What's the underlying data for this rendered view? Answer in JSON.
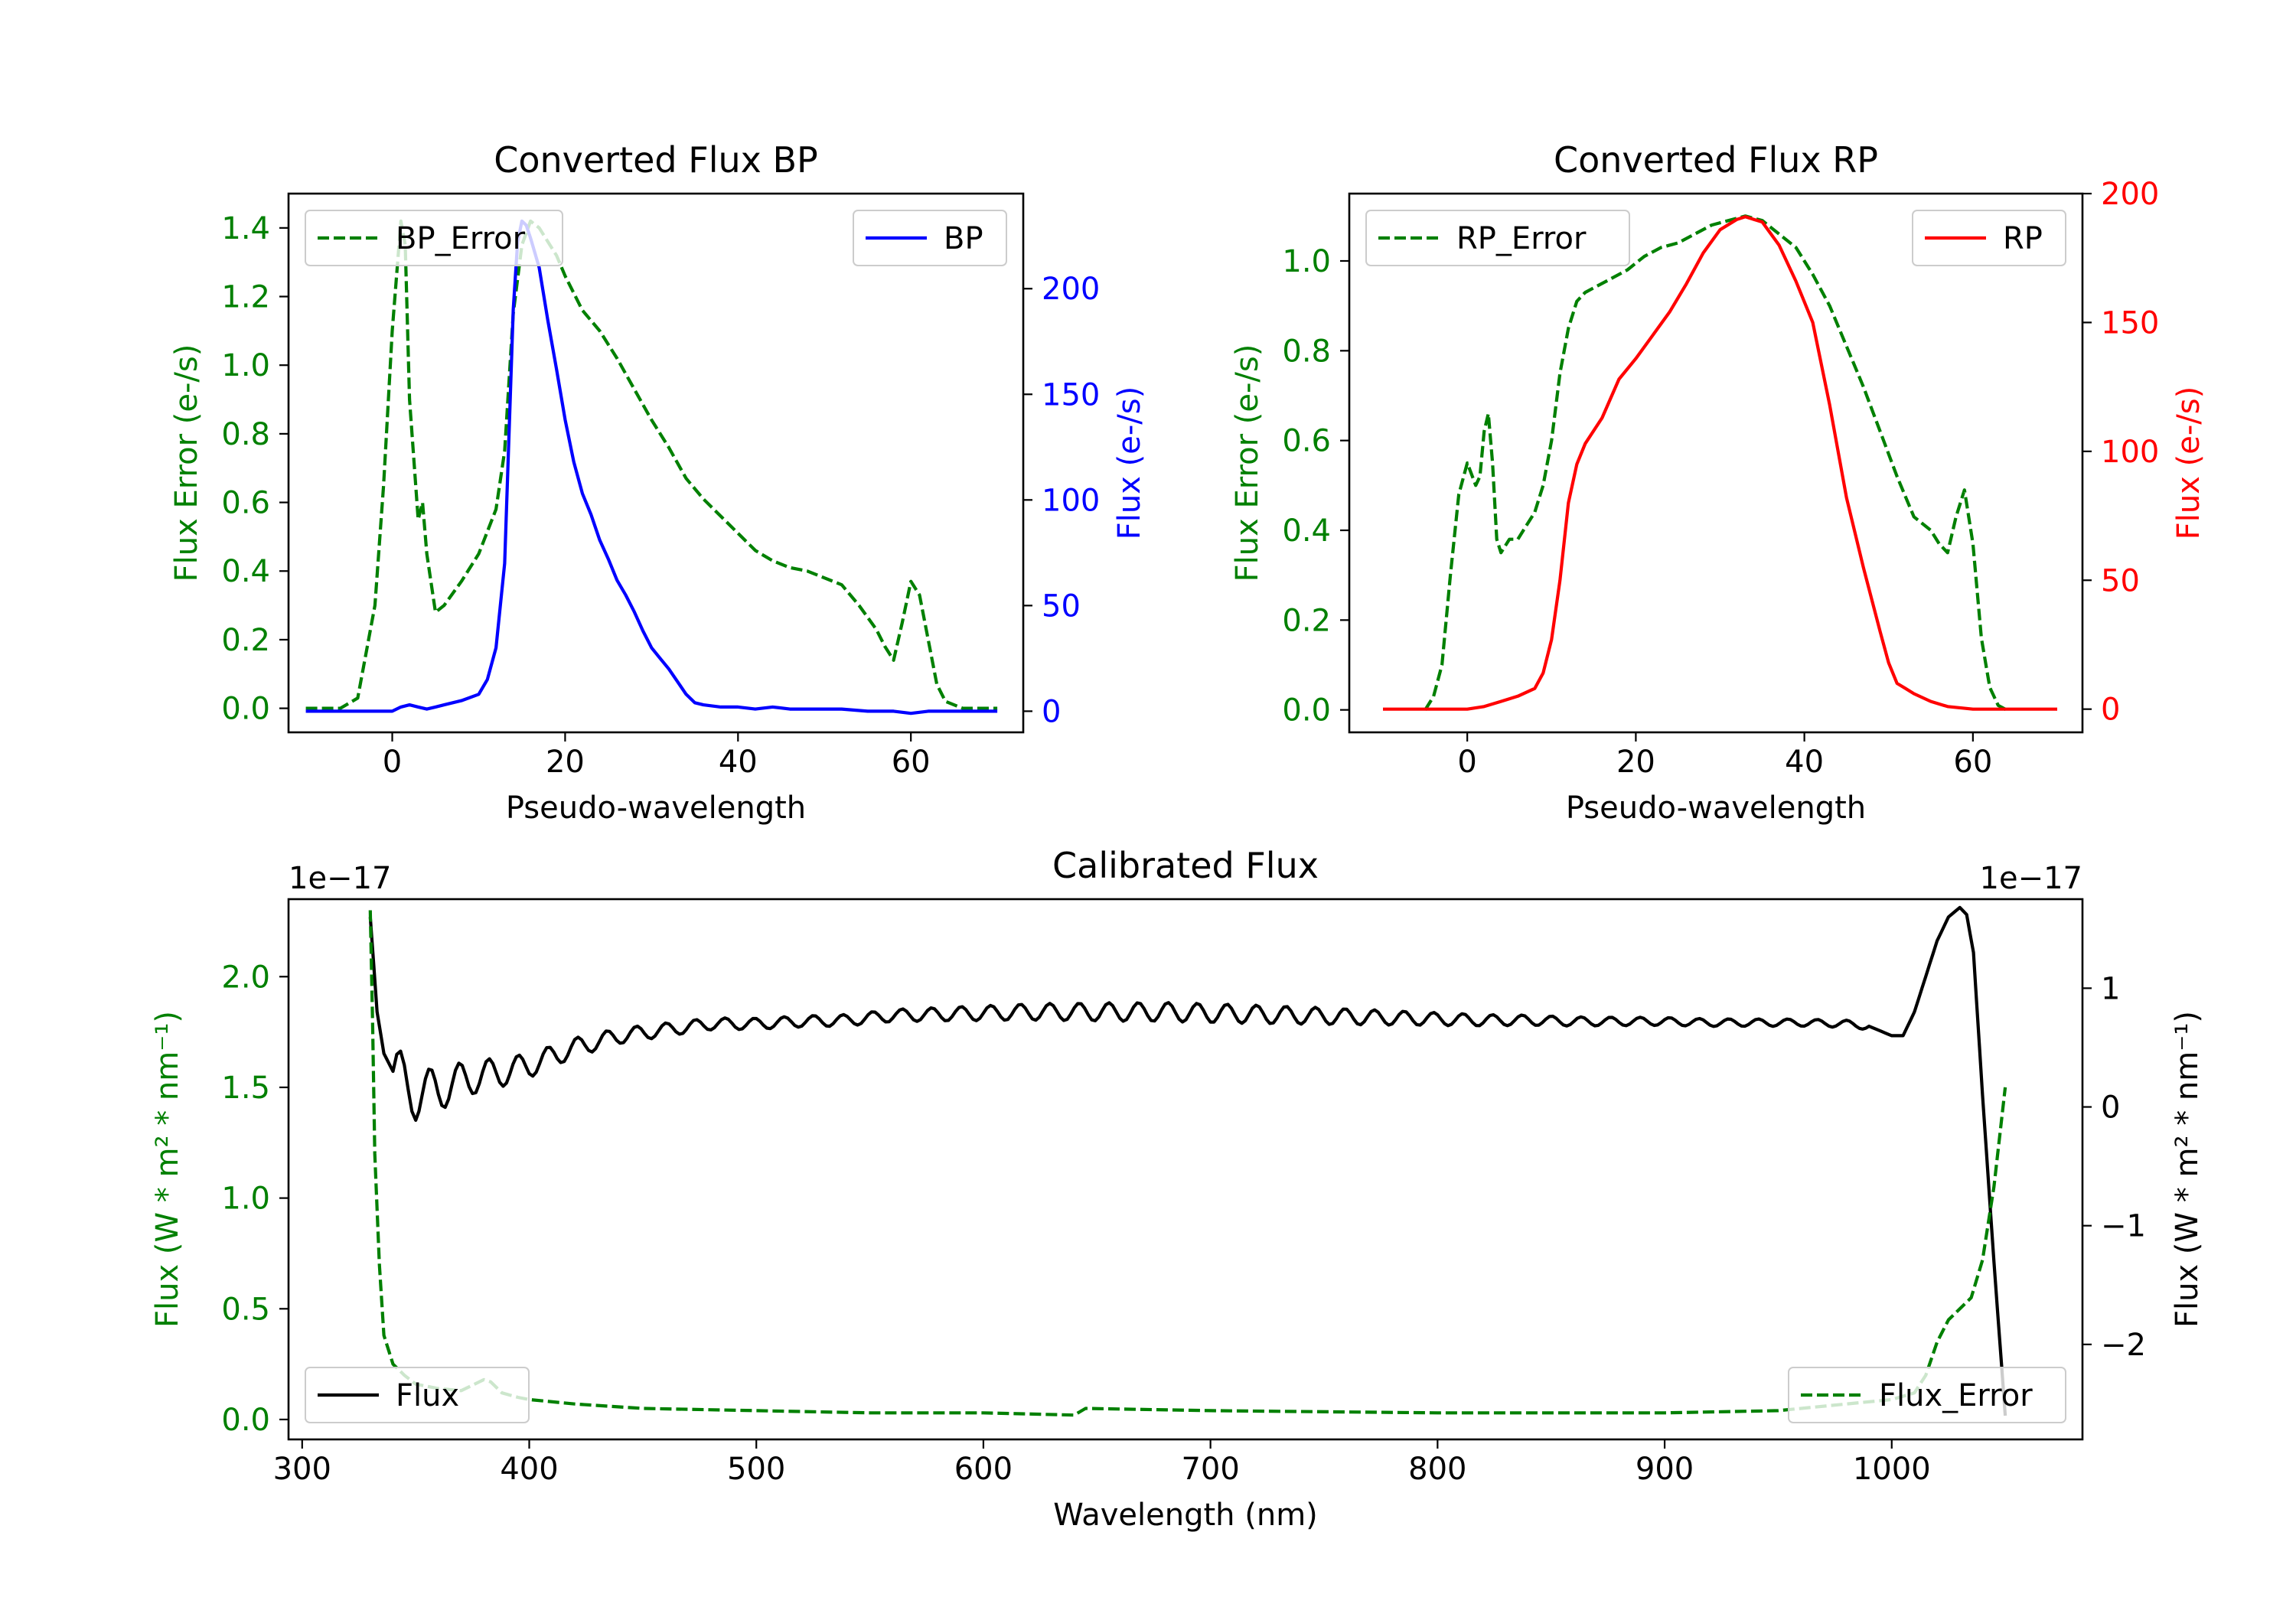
{
  "colors": {
    "error": "#008000",
    "bp": "#0000ff",
    "rp": "#ff0000",
    "flux": "#000000",
    "axis": "#000000"
  },
  "chart_data": [
    {
      "id": "bp",
      "type": "line",
      "title": "Converted Flux BP",
      "xlabel": "Pseudo-wavelength",
      "ylabel_left": "Flux Error (e-/s)",
      "ylabel_right": "Flux (e-/s)",
      "xlim": [
        -12,
        73
      ],
      "xticks": [
        0,
        20,
        40,
        60
      ],
      "ylim_left": [
        -0.07,
        1.5
      ],
      "yticks_left": [
        "0.0",
        "0.2",
        "0.4",
        "0.6",
        "0.8",
        "1.0",
        "1.2",
        "1.4"
      ],
      "ylim_right": [
        -10,
        245
      ],
      "yticks_right": [
        0,
        50,
        100,
        150,
        200
      ],
      "legend_left": "top-left",
      "legend_right": "top-right",
      "series": [
        {
          "name": "BP_Error",
          "axis": "left",
          "style": "dashed",
          "x": [
            -10,
            -6,
            -4,
            -2,
            -1,
            0,
            1,
            1.5,
            2,
            3,
            3.5,
            4,
            5,
            6,
            8,
            10,
            12,
            13,
            14,
            15,
            16,
            17,
            18,
            19,
            20,
            22,
            24,
            26,
            28,
            30,
            32,
            34,
            36,
            38,
            40,
            42,
            44,
            46,
            48,
            50,
            52,
            54,
            56,
            57,
            58,
            59,
            60,
            61,
            62,
            63,
            64,
            66,
            68,
            70
          ],
          "y": [
            0.0,
            0.0,
            0.03,
            0.3,
            0.65,
            1.1,
            1.42,
            1.35,
            0.9,
            0.55,
            0.6,
            0.45,
            0.28,
            0.3,
            0.37,
            0.45,
            0.58,
            0.75,
            1.15,
            1.35,
            1.42,
            1.4,
            1.36,
            1.32,
            1.26,
            1.16,
            1.1,
            1.02,
            0.93,
            0.84,
            0.76,
            0.67,
            0.61,
            0.56,
            0.51,
            0.46,
            0.43,
            0.41,
            0.4,
            0.38,
            0.36,
            0.3,
            0.23,
            0.18,
            0.14,
            0.25,
            0.37,
            0.33,
            0.2,
            0.07,
            0.02,
            0.0,
            0.0,
            0.0
          ]
        },
        {
          "name": "BP",
          "axis": "right",
          "style": "solid",
          "x": [
            -10,
            -5,
            0,
            1,
            2,
            3,
            4,
            5,
            6,
            8,
            10,
            11,
            12,
            13,
            13.5,
            14,
            14.5,
            15,
            15.5,
            16,
            17,
            18,
            19,
            20,
            21,
            22,
            23,
            24,
            25,
            26,
            27,
            28,
            29,
            30,
            31,
            32,
            33,
            34,
            35,
            36,
            38,
            40,
            42,
            44,
            46,
            48,
            50,
            52,
            55,
            58,
            60,
            62,
            65,
            70
          ],
          "y": [
            0,
            0,
            0,
            2,
            3,
            2,
            1,
            2,
            3,
            5,
            8,
            15,
            30,
            70,
            130,
            190,
            222,
            232,
            230,
            224,
            210,
            185,
            162,
            138,
            118,
            103,
            93,
            81,
            72,
            62,
            55,
            47,
            38,
            30,
            25,
            20,
            14,
            8,
            4,
            3,
            2,
            2,
            1,
            2,
            1,
            1,
            1,
            1,
            0,
            0,
            -1,
            0,
            0,
            0
          ]
        }
      ]
    },
    {
      "id": "rp",
      "type": "line",
      "title": "Converted Flux RP",
      "xlabel": "Pseudo-wavelength",
      "ylabel_left": "Flux Error (e-/s)",
      "ylabel_right": "Flux (e-/s)",
      "xlim": [
        -14,
        73
      ],
      "xticks": [
        0,
        20,
        40,
        60
      ],
      "ylim_left": [
        -0.05,
        1.15
      ],
      "yticks_left": [
        "0.0",
        "0.2",
        "0.4",
        "0.6",
        "0.8",
        "1.0"
      ],
      "ylim_right": [
        -9,
        200
      ],
      "yticks_right": [
        0,
        50,
        100,
        150,
        200
      ],
      "legend_left": "top-left",
      "legend_right": "top-right",
      "series": [
        {
          "name": "RP_Error",
          "axis": "left",
          "style": "dashed",
          "x": [
            -5,
            -4,
            -3,
            -2,
            -1,
            0,
            1,
            1.5,
            2,
            2.5,
            3,
            3.5,
            4,
            5,
            6,
            7,
            8,
            9,
            10,
            11,
            12,
            13,
            14,
            15,
            17,
            19,
            21,
            23,
            25,
            27,
            29,
            31,
            33,
            35,
            37,
            39,
            41,
            43,
            45,
            47,
            49,
            51,
            53,
            55,
            56,
            57,
            58,
            59,
            60,
            61,
            62,
            63,
            64
          ],
          "y": [
            0.0,
            0.03,
            0.1,
            0.3,
            0.48,
            0.55,
            0.5,
            0.52,
            0.62,
            0.66,
            0.55,
            0.38,
            0.35,
            0.38,
            0.38,
            0.41,
            0.44,
            0.5,
            0.6,
            0.75,
            0.85,
            0.91,
            0.93,
            0.94,
            0.96,
            0.98,
            1.01,
            1.03,
            1.04,
            1.06,
            1.08,
            1.09,
            1.1,
            1.09,
            1.06,
            1.03,
            0.97,
            0.9,
            0.81,
            0.72,
            0.62,
            0.52,
            0.43,
            0.4,
            0.37,
            0.35,
            0.43,
            0.49,
            0.37,
            0.16,
            0.05,
            0.01,
            0.0
          ]
        },
        {
          "name": "RP",
          "axis": "right",
          "style": "solid",
          "x": [
            -10,
            -5,
            0,
            2,
            4,
            6,
            8,
            9,
            10,
            11,
            12,
            13,
            14,
            16,
            18,
            20,
            22,
            24,
            26,
            28,
            30,
            32,
            33,
            34,
            35,
            37,
            39,
            41,
            43,
            45,
            47,
            49,
            50,
            51,
            52,
            53,
            55,
            57,
            60,
            65,
            70
          ],
          "y": [
            0,
            0,
            0,
            1,
            3,
            5,
            8,
            14,
            27,
            50,
            80,
            95,
            103,
            113,
            128,
            136,
            145,
            154,
            165,
            177,
            186,
            190,
            191,
            190,
            189,
            180,
            166,
            150,
            118,
            82,
            55,
            30,
            18,
            10,
            8,
            6,
            3,
            1,
            0,
            0,
            0
          ]
        }
      ]
    },
    {
      "id": "cal",
      "type": "line",
      "title": "Calibrated Flux",
      "xlabel": "Wavelength (nm)",
      "ylabel_left": "Flux (W * m² * nm⁻¹)",
      "ylabel_right": "Flux (W * m² * nm⁻¹)",
      "offset_left": "1e−17",
      "offset_right": "1e−17",
      "xlim": [
        294,
        1084
      ],
      "xticks": [
        300,
        400,
        500,
        600,
        700,
        800,
        900,
        1000
      ],
      "ylim_left": [
        -0.09,
        2.35
      ],
      "yticks_left": [
        "0.0",
        "0.5",
        "1.0",
        "1.5",
        "2.0"
      ],
      "ylim_right": [
        -2.8,
        1.75
      ],
      "yticks_right": [
        "1",
        "0",
        "−1",
        "−2"
      ],
      "yticks_right_values": [
        1,
        0,
        -1,
        -2
      ],
      "legend_left": "bottom-left",
      "legend_right": "bottom-right",
      "series": [
        {
          "name": "Flux",
          "axis": "right",
          "style": "solid",
          "osc_start": 340,
          "osc_end": 990,
          "x": [
            330,
            333,
            336,
            340,
            345,
            350,
            360,
            375,
            390,
            400,
            420,
            440,
            460,
            480,
            500,
            520,
            540,
            560,
            580,
            600,
            620,
            640,
            660,
            680,
            700,
            720,
            740,
            760,
            780,
            800,
            820,
            840,
            860,
            880,
            900,
            920,
            940,
            960,
            980,
            990,
            1000,
            1005,
            1010,
            1015,
            1020,
            1025,
            1030,
            1033,
            1036,
            1040,
            1045,
            1050
          ],
          "y": [
            1.6,
            0.8,
            0.45,
            0.3,
            0.2,
            0.1,
            0.15,
            0.25,
            0.3,
            0.35,
            0.5,
            0.6,
            0.65,
            0.7,
            0.7,
            0.72,
            0.73,
            0.77,
            0.78,
            0.79,
            0.8,
            0.8,
            0.8,
            0.8,
            0.79,
            0.78,
            0.77,
            0.76,
            0.75,
            0.74,
            0.73,
            0.73,
            0.72,
            0.72,
            0.72,
            0.71,
            0.71,
            0.71,
            0.7,
            0.68,
            0.6,
            0.6,
            0.8,
            1.1,
            1.4,
            1.6,
            1.68,
            1.62,
            1.3,
            0.1,
            -1.3,
            -2.6
          ]
        },
        {
          "name": "Flux_Error",
          "axis": "left",
          "style": "dashed",
          "x": [
            330,
            331,
            332,
            334,
            336,
            340,
            345,
            350,
            360,
            370,
            380,
            383,
            388,
            395,
            400,
            420,
            450,
            500,
            550,
            600,
            640,
            645,
            700,
            800,
            900,
            950,
            1000,
            1010,
            1015,
            1020,
            1025,
            1030,
            1035,
            1040,
            1045,
            1050
          ],
          "y": [
            2.3,
            1.8,
            1.2,
            0.7,
            0.38,
            0.25,
            0.2,
            0.16,
            0.14,
            0.13,
            0.18,
            0.17,
            0.12,
            0.1,
            0.09,
            0.07,
            0.05,
            0.04,
            0.03,
            0.03,
            0.02,
            0.05,
            0.04,
            0.03,
            0.03,
            0.04,
            0.09,
            0.12,
            0.2,
            0.35,
            0.45,
            0.5,
            0.55,
            0.72,
            1.05,
            1.5
          ]
        }
      ]
    }
  ]
}
